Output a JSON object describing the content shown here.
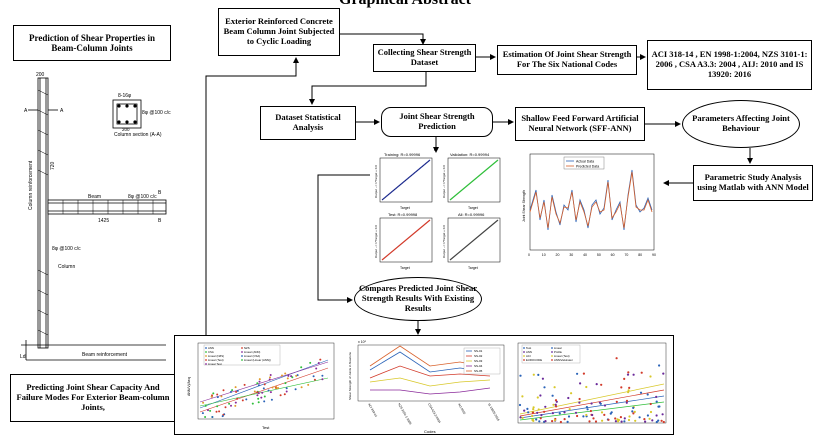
{
  "title": "Graphical Abstract",
  "boxes": {
    "prediction_shear_props": "Prediction of Shear Properties in Beam-Column Joints",
    "exterior_joint": "Exterior Reinforced Concrete Beam Column Joint Subjected to Cyclic Loading",
    "collecting_dataset": "Collecting Shear Strength Dataset",
    "estimation_codes": "Estimation Of Joint Shear Strength For The Six National Codes",
    "codes_list": "ACI 318-14 , EN 1998-1:2004, NZS 3101-1: 2006 , CSA A3.3: 2004 , AIJ: 2010 and IS 13920: 2016",
    "dataset_analysis": "Dataset Statistical Analysis",
    "joint_prediction": "Joint Shear Strength Prediction",
    "sff_ann": "Shallow Feed Forward Artificial Neural Network (SFF-ANN)",
    "parameters": "Parameters Affecting Joint Behaviour",
    "parametric_study": "Parametric Study Analysis using Matlab with ANN Model",
    "predicting_capacity": "Predicting Joint Shear Capacity And Failure Modes For Exterior Beam-column Joints,",
    "compares": "Compares Predicted Joint Shear Strength Results With Existing Results"
  },
  "drawing": {
    "dim_200_top": "200",
    "label_a_left": "A",
    "label_a_right": "A",
    "bars": "8-16φ",
    "stirrup_col": "8φ @100 c/c",
    "col_section": "Column section (A-A)",
    "dim_200_sec": "200",
    "col_reinf": "Column reinforcement",
    "dim_720": "720",
    "label_b_top": "B",
    "label_b_bot": "B",
    "beam": "Beam",
    "dim_1425": "1425",
    "stirrup_beam": "8φ @100 c/c",
    "stirrup_col2": "8φ @100 c/c",
    "column": "Column",
    "beam_reinf": "Beam reinforcement",
    "ld": "Ld"
  },
  "regression": {
    "training": "Training: R=0.99996",
    "validation": "Validation: R=0.99994",
    "test": "Test: R=0.99998",
    "all": "All: R=0.99996",
    "target": "Target",
    "ylabel": "Output ~= 1*Target + 0.0"
  },
  "line_chart": {
    "legend_actual": "Actual Data",
    "legend_pred": "Predicted Data",
    "ylabel": "Joint Shear Strength",
    "x_ticks": [
      "0",
      "10",
      "20",
      "30",
      "40",
      "50",
      "60",
      "70",
      "80",
      "90"
    ]
  },
  "scatter1": {
    "xlabel": "Test",
    "ylabel": "ANN/Vj/Aeq",
    "legend": [
      "ANN",
      "NZS",
      "CSA",
      "Linear (ANN)",
      "Linear (NZS)",
      "Linear (CSA)",
      "Linear (Test)",
      "Linear (Linear (ANN))",
      "Linear Test"
    ]
  },
  "codes_chart": {
    "xlabel": "Codes",
    "ylabel": "Shear Strength of Joints in Newtons",
    "exp": "x 10⁵",
    "categories": [
      "ACI 318-14",
      "NZS 3101-1-2006",
      "CSA A23.3-2004",
      "AIJ-2010",
      "IS 13920-2016"
    ],
    "legend": [
      "SS-01",
      "SS-02",
      "SS-03",
      "SS-04",
      "SS-05"
    ]
  },
  "scatter3": {
    "legend": [
      "Test",
      "ANN",
      "ACI",
      "EUROCODE",
      "Linear",
      "Profile",
      "Linear (Test)",
      "ANN/Vaixinator"
    ]
  },
  "colors": {
    "box_border": "#000000",
    "arrow": "#000000"
  }
}
